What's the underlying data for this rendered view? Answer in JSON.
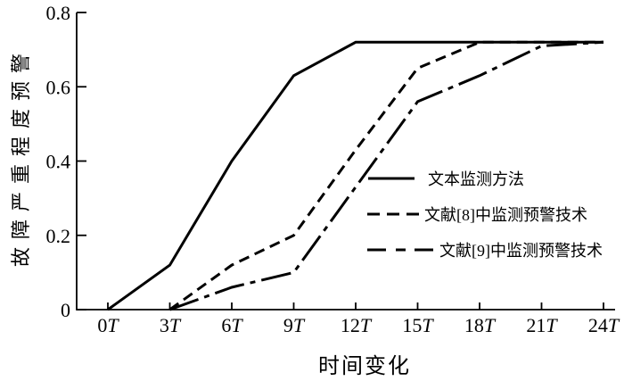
{
  "figure": {
    "background": "#ffffff",
    "ink_color": "#000000"
  },
  "chart_data": {
    "type": "line",
    "title": "",
    "xlabel": "时间变化",
    "ylabel": "故障严重程度预警",
    "xlim": [
      0,
      24
    ],
    "ylim": [
      0,
      0.8
    ],
    "grid": false,
    "legend_position": "center-right",
    "x_tick_values": [
      0,
      3,
      6,
      9,
      12,
      15,
      18,
      21,
      24
    ],
    "x_tick_labels": [
      "0T",
      "3T",
      "6T",
      "9T",
      "12T",
      "15T",
      "18T",
      "21T",
      "24T"
    ],
    "y_tick_values": [
      0,
      0.2,
      0.4,
      0.6,
      0.8
    ],
    "y_tick_labels": [
      "0",
      "0.2",
      "0.4",
      "0.6",
      "0.8"
    ],
    "line_color": "#000000",
    "series": [
      {
        "name": "文本监测方法",
        "style": "solid",
        "points": [
          [
            0,
            0
          ],
          [
            3,
            0.12
          ],
          [
            6,
            0.4
          ],
          [
            9,
            0.63
          ],
          [
            12,
            0.72
          ],
          [
            24,
            0.72
          ]
        ]
      },
      {
        "name": "文献[8]中监测预警技术",
        "style": "dashed",
        "points": [
          [
            3,
            0
          ],
          [
            6,
            0.12
          ],
          [
            9,
            0.2
          ],
          [
            12,
            0.43
          ],
          [
            15,
            0.65
          ],
          [
            18,
            0.72
          ],
          [
            24,
            0.72
          ]
        ]
      },
      {
        "name": "文献[9]中监测预警技术",
        "style": "dash-dot",
        "points": [
          [
            3,
            0
          ],
          [
            6,
            0.06
          ],
          [
            9,
            0.1
          ],
          [
            12,
            0.33
          ],
          [
            15,
            0.56
          ],
          [
            18,
            0.63
          ],
          [
            21,
            0.71
          ],
          [
            24,
            0.72
          ]
        ]
      }
    ]
  }
}
